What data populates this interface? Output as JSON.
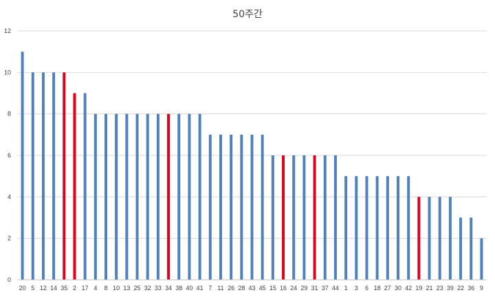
{
  "chart_data": {
    "type": "bar",
    "title": "50주간",
    "xlabel": "",
    "ylabel": "",
    "ylim": [
      0,
      12
    ],
    "yticks": [
      0,
      2,
      4,
      6,
      8,
      10,
      12
    ],
    "grid": true,
    "legend": "none",
    "categories": [
      "20",
      "5",
      "12",
      "14",
      "35",
      "2",
      "17",
      "4",
      "8",
      "10",
      "13",
      "25",
      "32",
      "33",
      "34",
      "38",
      "40",
      "41",
      "7",
      "11",
      "26",
      "28",
      "43",
      "45",
      "15",
      "16",
      "24",
      "29",
      "31",
      "37",
      "44",
      "1",
      "3",
      "6",
      "18",
      "27",
      "30",
      "42",
      "19",
      "21",
      "23",
      "39",
      "22",
      "36",
      "9"
    ],
    "values": [
      11,
      10,
      10,
      10,
      10,
      9,
      9,
      8,
      8,
      8,
      8,
      8,
      8,
      8,
      8,
      8,
      8,
      8,
      7,
      7,
      7,
      7,
      7,
      7,
      6,
      6,
      6,
      6,
      6,
      6,
      6,
      5,
      5,
      5,
      5,
      5,
      5,
      5,
      4,
      4,
      4,
      4,
      3,
      3,
      2
    ],
    "highlighted": [
      "35",
      "2",
      "34",
      "16",
      "31",
      "19"
    ],
    "colors": {
      "bar": "#4F81BD",
      "bar_edge": "#3A6A9F",
      "highlight": "#E0001A",
      "grid": "#D9D9D9",
      "axis": "#BFBFBF",
      "text": "#404040"
    }
  }
}
